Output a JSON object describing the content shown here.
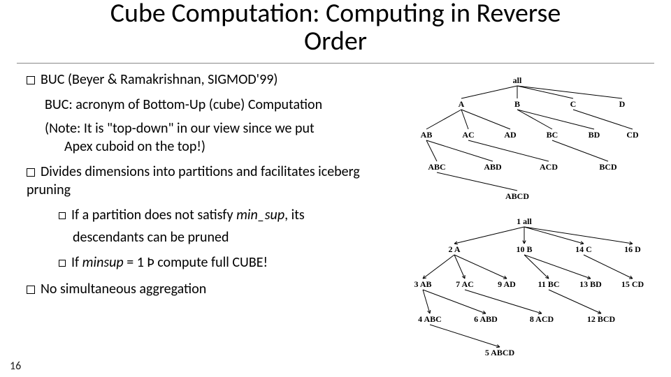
{
  "title_line1": "Cube Computation: Computing in Reverse",
  "title_line2": "Order",
  "bullets": {
    "b1": "BUC (Beyer & Ramakrishnan, SIGMOD'99)",
    "b1_sub1": "BUC: acronym of Bottom-Up (cube) Computation",
    "b1_sub2a": "(Note: It is \"top-down\" in our view since we put",
    "b1_sub2b": "Apex cuboid on the top!)",
    "b2": "Divides dimensions into partitions and facilitates iceberg pruning",
    "b2_s1a": "If a partition does not satisfy ",
    "b2_s1_em": "min_sup",
    "b2_s1b": ", its",
    "b2_s1c": "descendants can be pruned",
    "b2_s2a": "If ",
    "b2_s2_em": "minsup",
    "b2_s2b": " = 1 Þ compute full CUBE!",
    "b3": "No simultaneous aggregation"
  },
  "pagenum": "16",
  "tree1": {
    "root": "all",
    "l1": [
      "A",
      "B",
      "C",
      "D"
    ],
    "l2": [
      "AB",
      "AC",
      "AD",
      "BC",
      "BD",
      "CD"
    ],
    "l3": [
      "ABC",
      "ABD",
      "ACD",
      "BCD"
    ],
    "l4": "ABCD"
  },
  "tree2": {
    "root": "1 all",
    "l1": [
      "2 A",
      "10 B",
      "14 C",
      "16 D"
    ],
    "l2": [
      "3 AB",
      "7 AC",
      "9 AD",
      "11 BC",
      "13 BD",
      "15 CD"
    ],
    "l3": [
      "4 ABC",
      "6 ABD",
      "8 ACD",
      "12 BCD"
    ],
    "l4": "5 ABCD"
  },
  "colors": {
    "text": "#000000",
    "bg": "#ffffff",
    "line": "#000000",
    "hr": "#888888"
  }
}
